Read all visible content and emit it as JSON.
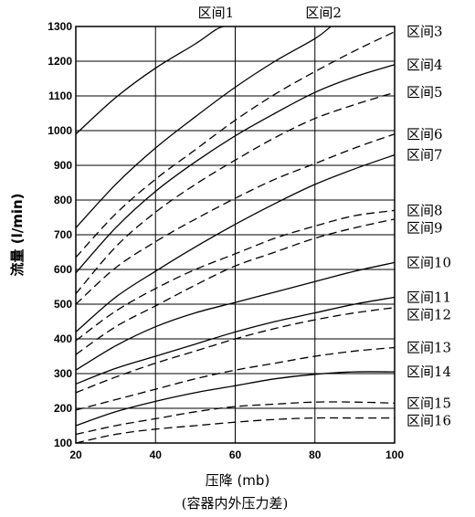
{
  "chart_data": {
    "type": "line",
    "ylabel": "流量 (l/min)",
    "xlabel": "压降 (mb)",
    "xlabel_sub": "(容器内外压力差)",
    "xlim": [
      20,
      100
    ],
    "ylim": [
      100,
      1300
    ],
    "xticks": [
      20,
      40,
      60,
      80,
      100
    ],
    "yticks": [
      100,
      200,
      300,
      400,
      500,
      600,
      700,
      800,
      900,
      1000,
      1100,
      1200,
      1300
    ],
    "grid": true,
    "series": [
      {
        "name": "区间1",
        "style": "solid",
        "label_position": "top",
        "points": [
          [
            20,
            990
          ],
          [
            30,
            1095
          ],
          [
            40,
            1180
          ],
          [
            50,
            1250
          ],
          [
            55,
            1290
          ],
          [
            57,
            1300
          ]
        ]
      },
      {
        "name": "区间2",
        "style": "solid",
        "label_position": "top",
        "points": [
          [
            20,
            720
          ],
          [
            30,
            845
          ],
          [
            40,
            950
          ],
          [
            50,
            1040
          ],
          [
            60,
            1125
          ],
          [
            70,
            1200
          ],
          [
            80,
            1265
          ],
          [
            84,
            1300
          ]
        ]
      },
      {
        "name": "区间3",
        "style": "dashed",
        "label_position": "right",
        "points": [
          [
            20,
            635
          ],
          [
            30,
            760
          ],
          [
            40,
            860
          ],
          [
            50,
            945
          ],
          [
            60,
            1030
          ],
          [
            70,
            1105
          ],
          [
            80,
            1170
          ],
          [
            90,
            1230
          ],
          [
            100,
            1285
          ]
        ]
      },
      {
        "name": "区间4",
        "style": "solid",
        "label_position": "right",
        "points": [
          [
            20,
            590
          ],
          [
            30,
            720
          ],
          [
            40,
            825
          ],
          [
            50,
            910
          ],
          [
            60,
            985
          ],
          [
            70,
            1050
          ],
          [
            80,
            1110
          ],
          [
            90,
            1155
          ],
          [
            100,
            1190
          ]
        ]
      },
      {
        "name": "区间5",
        "style": "dashed",
        "label_position": "right",
        "points": [
          [
            20,
            530
          ],
          [
            30,
            665
          ],
          [
            40,
            765
          ],
          [
            50,
            845
          ],
          [
            60,
            915
          ],
          [
            70,
            980
          ],
          [
            80,
            1035
          ],
          [
            90,
            1075
          ],
          [
            100,
            1110
          ]
        ]
      },
      {
        "name": "区间6",
        "style": "dashed",
        "label_position": "right",
        "points": [
          [
            20,
            500
          ],
          [
            30,
            605
          ],
          [
            40,
            680
          ],
          [
            50,
            745
          ],
          [
            60,
            805
          ],
          [
            70,
            860
          ],
          [
            80,
            905
          ],
          [
            90,
            950
          ],
          [
            100,
            990
          ]
        ]
      },
      {
        "name": "区间7",
        "style": "solid",
        "label_position": "right",
        "points": [
          [
            20,
            420
          ],
          [
            30,
            520
          ],
          [
            40,
            595
          ],
          [
            50,
            665
          ],
          [
            60,
            730
          ],
          [
            70,
            790
          ],
          [
            80,
            845
          ],
          [
            90,
            890
          ],
          [
            100,
            930
          ]
        ]
      },
      {
        "name": "区间8",
        "style": "dashed",
        "label_position": "right",
        "points": [
          [
            20,
            395
          ],
          [
            30,
            480
          ],
          [
            40,
            545
          ],
          [
            50,
            600
          ],
          [
            60,
            645
          ],
          [
            70,
            690
          ],
          [
            80,
            725
          ],
          [
            90,
            755
          ],
          [
            100,
            770
          ]
        ]
      },
      {
        "name": "区间9",
        "style": "dashed",
        "label_position": "right",
        "points": [
          [
            20,
            355
          ],
          [
            30,
            435
          ],
          [
            40,
            495
          ],
          [
            50,
            555
          ],
          [
            60,
            610
          ],
          [
            70,
            650
          ],
          [
            80,
            690
          ],
          [
            90,
            720
          ],
          [
            100,
            745
          ]
        ]
      },
      {
        "name": "区间10",
        "style": "solid",
        "label_position": "right",
        "points": [
          [
            20,
            310
          ],
          [
            30,
            380
          ],
          [
            40,
            435
          ],
          [
            50,
            475
          ],
          [
            60,
            505
          ],
          [
            70,
            535
          ],
          [
            80,
            565
          ],
          [
            90,
            595
          ],
          [
            100,
            620
          ]
        ]
      },
      {
        "name": "区间11",
        "style": "solid",
        "label_position": "right",
        "points": [
          [
            20,
            270
          ],
          [
            30,
            315
          ],
          [
            40,
            350
          ],
          [
            50,
            385
          ],
          [
            60,
            420
          ],
          [
            70,
            450
          ],
          [
            80,
            475
          ],
          [
            90,
            500
          ],
          [
            100,
            520
          ]
        ]
      },
      {
        "name": "区间12",
        "style": "dashed",
        "label_position": "right",
        "points": [
          [
            20,
            245
          ],
          [
            30,
            290
          ],
          [
            40,
            330
          ],
          [
            50,
            365
          ],
          [
            60,
            400
          ],
          [
            70,
            430
          ],
          [
            80,
            455
          ],
          [
            90,
            475
          ],
          [
            100,
            490
          ]
        ]
      },
      {
        "name": "区间13",
        "style": "dashed",
        "label_position": "right",
        "points": [
          [
            20,
            195
          ],
          [
            30,
            225
          ],
          [
            40,
            255
          ],
          [
            50,
            285
          ],
          [
            60,
            310
          ],
          [
            70,
            330
          ],
          [
            80,
            350
          ],
          [
            90,
            365
          ],
          [
            100,
            375
          ]
        ]
      },
      {
        "name": "区间14",
        "style": "solid",
        "label_position": "right",
        "points": [
          [
            20,
            150
          ],
          [
            30,
            190
          ],
          [
            40,
            220
          ],
          [
            50,
            245
          ],
          [
            60,
            265
          ],
          [
            70,
            285
          ],
          [
            80,
            298
          ],
          [
            90,
            305
          ],
          [
            100,
            305
          ]
        ]
      },
      {
        "name": "区间15",
        "style": "dashed",
        "label_position": "right",
        "points": [
          [
            20,
            125
          ],
          [
            30,
            150
          ],
          [
            40,
            170
          ],
          [
            50,
            190
          ],
          [
            60,
            205
          ],
          [
            70,
            212
          ],
          [
            80,
            218
          ],
          [
            90,
            218
          ],
          [
            100,
            215
          ]
        ]
      },
      {
        "name": "区间16",
        "style": "dashed",
        "label_position": "right",
        "points": [
          [
            20,
            100
          ],
          [
            30,
            125
          ],
          [
            40,
            140
          ],
          [
            50,
            150
          ],
          [
            60,
            160
          ],
          [
            70,
            168
          ],
          [
            80,
            172
          ],
          [
            90,
            172
          ],
          [
            100,
            172
          ]
        ]
      }
    ]
  }
}
